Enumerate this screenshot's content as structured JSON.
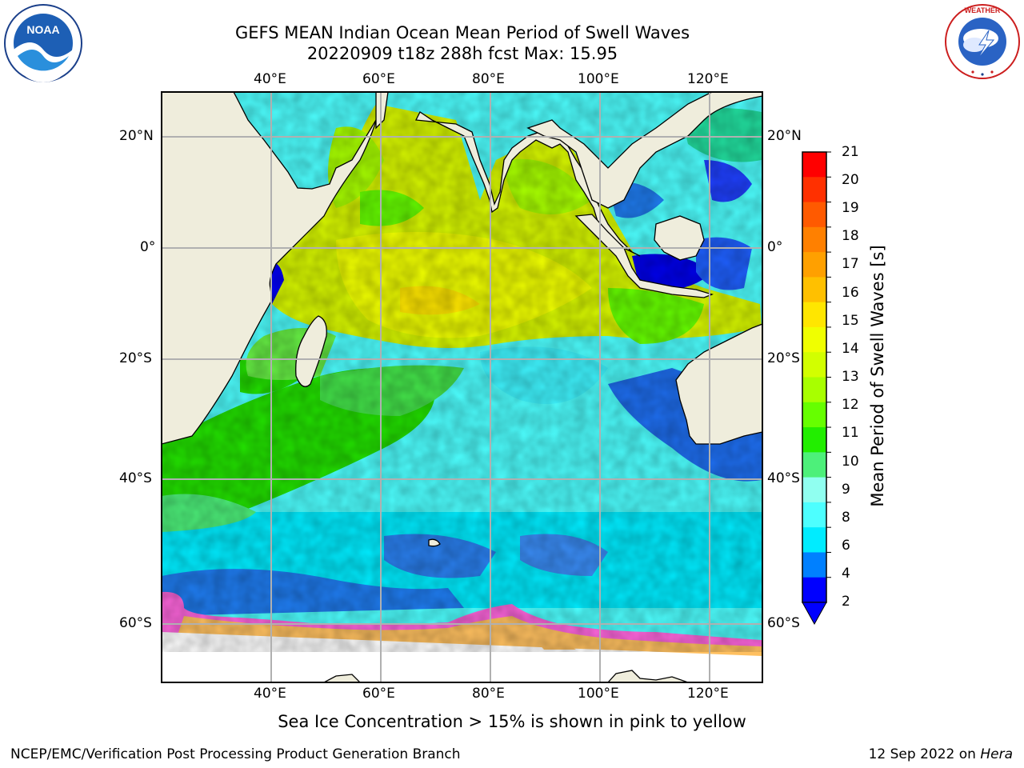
{
  "header": {
    "title_line1": "GEFS MEAN Indian Ocean Mean Period of Swell Waves",
    "title_line2": "20220909 t18z 288h fcst    Max: 15.95"
  },
  "logos": {
    "left": "NOAA",
    "left_ring_text": "NATIONAL OCEANIC AND ATMOSPHERIC ADMINISTRATION · U.S. DEPARTMENT OF COMMERCE",
    "right_ring_text": "NATIONAL WEATHER SERVICE"
  },
  "map": {
    "lon_labels_top": [
      "40°E",
      "60°E",
      "80°E",
      "100°E",
      "120°E"
    ],
    "lon_labels_bottom": [
      "40°E",
      "60°E",
      "80°E",
      "100°E",
      "120°E"
    ],
    "lat_labels_left": [
      "20°N",
      "0°",
      "20°S",
      "40°S",
      "60°S"
    ],
    "lat_labels_right": [
      "20°N",
      "0°",
      "20°S",
      "40°S",
      "60°S"
    ],
    "land_color": "#efeddc",
    "grid_color": "#b0b0b0"
  },
  "colorbar": {
    "title": "Mean Period of Swell Waves [s]",
    "ticks": [
      "21",
      "20",
      "19",
      "18",
      "17",
      "16",
      "15",
      "14",
      "13",
      "12",
      "11",
      "10",
      "9",
      "8",
      "6",
      "4",
      "2"
    ],
    "colors_top_to_bottom": [
      "#ff0000",
      "#ff3000",
      "#ff5a00",
      "#ff8000",
      "#ffa000",
      "#ffc000",
      "#ffe600",
      "#f0ff00",
      "#d2ff00",
      "#a8ff00",
      "#66ff00",
      "#22ee00",
      "#4df07a",
      "#90fff0",
      "#4dffff",
      "#00ecff",
      "#0080ff",
      "#0000ff"
    ]
  },
  "caption": "Sea Ice Concentration > 15% is shown in pink to yellow",
  "footer": {
    "left": "NCEP/EMC/Verification Post Processing Product Generation Branch",
    "right_date": "12 Sep 2022 on ",
    "right_host": "Hera"
  }
}
